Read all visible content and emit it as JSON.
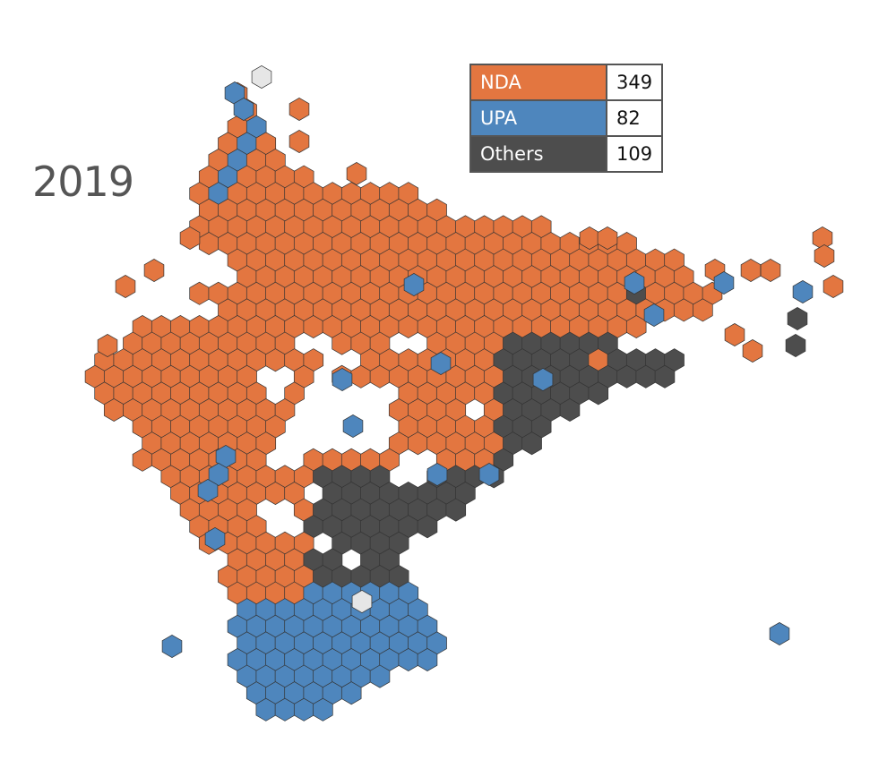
{
  "year": "2019",
  "colors": {
    "NDA": "#E37640",
    "UPA": "#4E86BD",
    "Others": "#4D4D4D",
    "Empty": "#E6E6E6"
  },
  "legend": [
    {
      "name": "NDA",
      "seats": "349",
      "color": "#E37640"
    },
    {
      "name": "UPA",
      "seats": "82",
      "color": "#4E86BD"
    },
    {
      "name": "Others",
      "seats": "109",
      "color": "#4D4D4D"
    }
  ]
}
